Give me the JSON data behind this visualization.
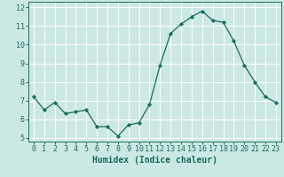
{
  "x": [
    0,
    1,
    2,
    3,
    4,
    5,
    6,
    7,
    8,
    9,
    10,
    11,
    12,
    13,
    14,
    15,
    16,
    17,
    18,
    19,
    20,
    21,
    22,
    23
  ],
  "y": [
    7.2,
    6.5,
    6.9,
    6.3,
    6.4,
    6.5,
    5.6,
    5.6,
    5.1,
    5.7,
    5.8,
    6.8,
    8.9,
    10.6,
    11.1,
    11.5,
    11.8,
    11.3,
    11.2,
    10.2,
    8.9,
    8.0,
    7.2,
    6.9
  ],
  "xlabel": "Humidex (Indice chaleur)",
  "xlim": [
    -0.5,
    23.5
  ],
  "ylim": [
    4.8,
    12.3
  ],
  "yticks": [
    5,
    6,
    7,
    8,
    9,
    10,
    11,
    12
  ],
  "xticks": [
    0,
    1,
    2,
    3,
    4,
    5,
    6,
    7,
    8,
    9,
    10,
    11,
    12,
    13,
    14,
    15,
    16,
    17,
    18,
    19,
    20,
    21,
    22,
    23
  ],
  "line_color": "#1a6b5e",
  "marker_color": "#1a6b5e",
  "bg_color": "#cce8e4",
  "grid_color": "#ffffff",
  "label_fontsize": 7,
  "tick_fontsize": 6
}
